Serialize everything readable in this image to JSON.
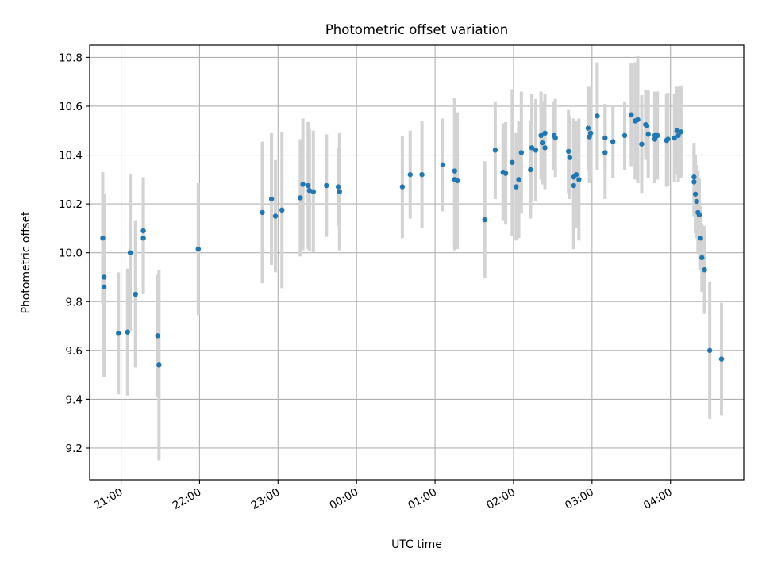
{
  "chart_data": {
    "type": "scatter",
    "title": "Photometric offset variation",
    "xlabel": "UTC time",
    "ylabel": "Photometric offset",
    "x_unit": "UTC (hh:mm), night spanning midnight",
    "xlim": [
      "20:36",
      "04:56"
    ],
    "ylim": [
      9.07,
      10.85
    ],
    "grid": true,
    "legend": "none",
    "x_ticks": [
      "21:00",
      "22:00",
      "23:00",
      "00:00",
      "01:00",
      "02:00",
      "03:00",
      "04:00"
    ],
    "y_ticks": [
      "9.2",
      "9.4",
      "9.6",
      "9.8",
      "10.0",
      "10.2",
      "10.4",
      "10.6",
      "10.8"
    ],
    "colors": {
      "marker": "#1f77b4",
      "errorbar": "#d3d3d3",
      "grid": "#b0b0b0"
    },
    "series": [
      {
        "x": [
          "20:46",
          "20:47",
          "20:47",
          "20:58",
          "21:05",
          "21:07",
          "21:11",
          "21:17",
          "21:17",
          "21:28",
          "21:29",
          "21:59",
          "22:48",
          "22:55",
          "22:58",
          "23:03",
          "23:17",
          "23:19",
          "23:23",
          "23:24",
          "23:27",
          "23:37",
          "23:46",
          "23:47",
          "00:35",
          "00:41",
          "00:50",
          "01:06",
          "01:15",
          "01:15",
          "01:17",
          "01:38",
          "01:46",
          "01:52",
          "01:54",
          "01:59",
          "02:02",
          "02:04",
          "02:06",
          "02:13",
          "02:14",
          "02:17",
          "02:21",
          "02:22",
          "02:24",
          "02:24",
          "02:31",
          "02:32",
          "02:42",
          "02:43",
          "02:46",
          "02:46",
          "02:48",
          "02:50",
          "02:57",
          "02:58",
          "02:59",
          "03:04",
          "03:10",
          "03:10",
          "03:16",
          "03:25",
          "03:30",
          "03:33",
          "03:35",
          "03:38",
          "03:41",
          "03:42",
          "03:43",
          "03:48",
          "03:48",
          "03:50",
          "03:57",
          "03:58",
          "04:03",
          "04:05",
          "04:06",
          "04:08",
          "04:18",
          "04:18",
          "04:19",
          "04:20",
          "04:21",
          "04:22",
          "04:23",
          "04:24",
          "04:26",
          "04:30",
          "04:39"
        ],
        "y": [
          10.06,
          9.9,
          9.86,
          9.67,
          9.675,
          10.0,
          9.83,
          10.09,
          10.06,
          9.66,
          9.54,
          10.015,
          10.165,
          10.22,
          10.15,
          10.175,
          10.225,
          10.28,
          10.275,
          10.255,
          10.25,
          10.275,
          10.27,
          10.25,
          10.27,
          10.32,
          10.32,
          10.36,
          10.335,
          10.3,
          10.295,
          10.135,
          10.42,
          10.33,
          10.325,
          10.37,
          10.27,
          10.3,
          10.41,
          10.34,
          10.43,
          10.42,
          10.48,
          10.45,
          10.43,
          10.49,
          10.48,
          10.47,
          10.415,
          10.39,
          10.31,
          10.275,
          10.32,
          10.3,
          10.51,
          10.475,
          10.49,
          10.56,
          10.41,
          10.47,
          10.455,
          10.48,
          10.565,
          10.54,
          10.545,
          10.445,
          10.525,
          10.52,
          10.485,
          10.48,
          10.465,
          10.48,
          10.46,
          10.465,
          10.47,
          10.5,
          10.48,
          10.495,
          10.31,
          10.29,
          10.24,
          10.21,
          10.165,
          10.155,
          10.06,
          9.98,
          9.93,
          9.6,
          9.565
        ],
        "yerr": [
          0.27,
          0.34,
          0.37,
          0.25,
          0.26,
          0.32,
          0.3,
          0.22,
          0.23,
          0.25,
          0.39,
          0.27,
          0.29,
          0.27,
          0.23,
          0.32,
          0.24,
          0.27,
          0.26,
          0.25,
          0.25,
          0.21,
          0.16,
          0.24,
          0.21,
          0.18,
          0.22,
          0.19,
          0.3,
          0.29,
          0.28,
          0.24,
          0.2,
          0.2,
          0.21,
          0.3,
          0.22,
          0.24,
          0.25,
          0.2,
          0.22,
          0.21,
          0.18,
          0.17,
          0.17,
          0.16,
          0.14,
          0.16,
          0.17,
          0.17,
          0.24,
          0.26,
          0.22,
          0.25,
          0.17,
          0.19,
          0.19,
          0.22,
          0.19,
          0.14,
          0.15,
          0.14,
          0.21,
          0.24,
          0.26,
          0.2,
          0.14,
          0.14,
          0.18,
          0.18,
          0.18,
          0.18,
          0.19,
          0.19,
          0.18,
          0.18,
          0.19,
          0.19,
          0.14,
          0.14,
          0.16,
          0.15,
          0.17,
          0.15,
          0.13,
          0.14,
          0.18,
          0.28,
          0.23
        ]
      }
    ]
  }
}
